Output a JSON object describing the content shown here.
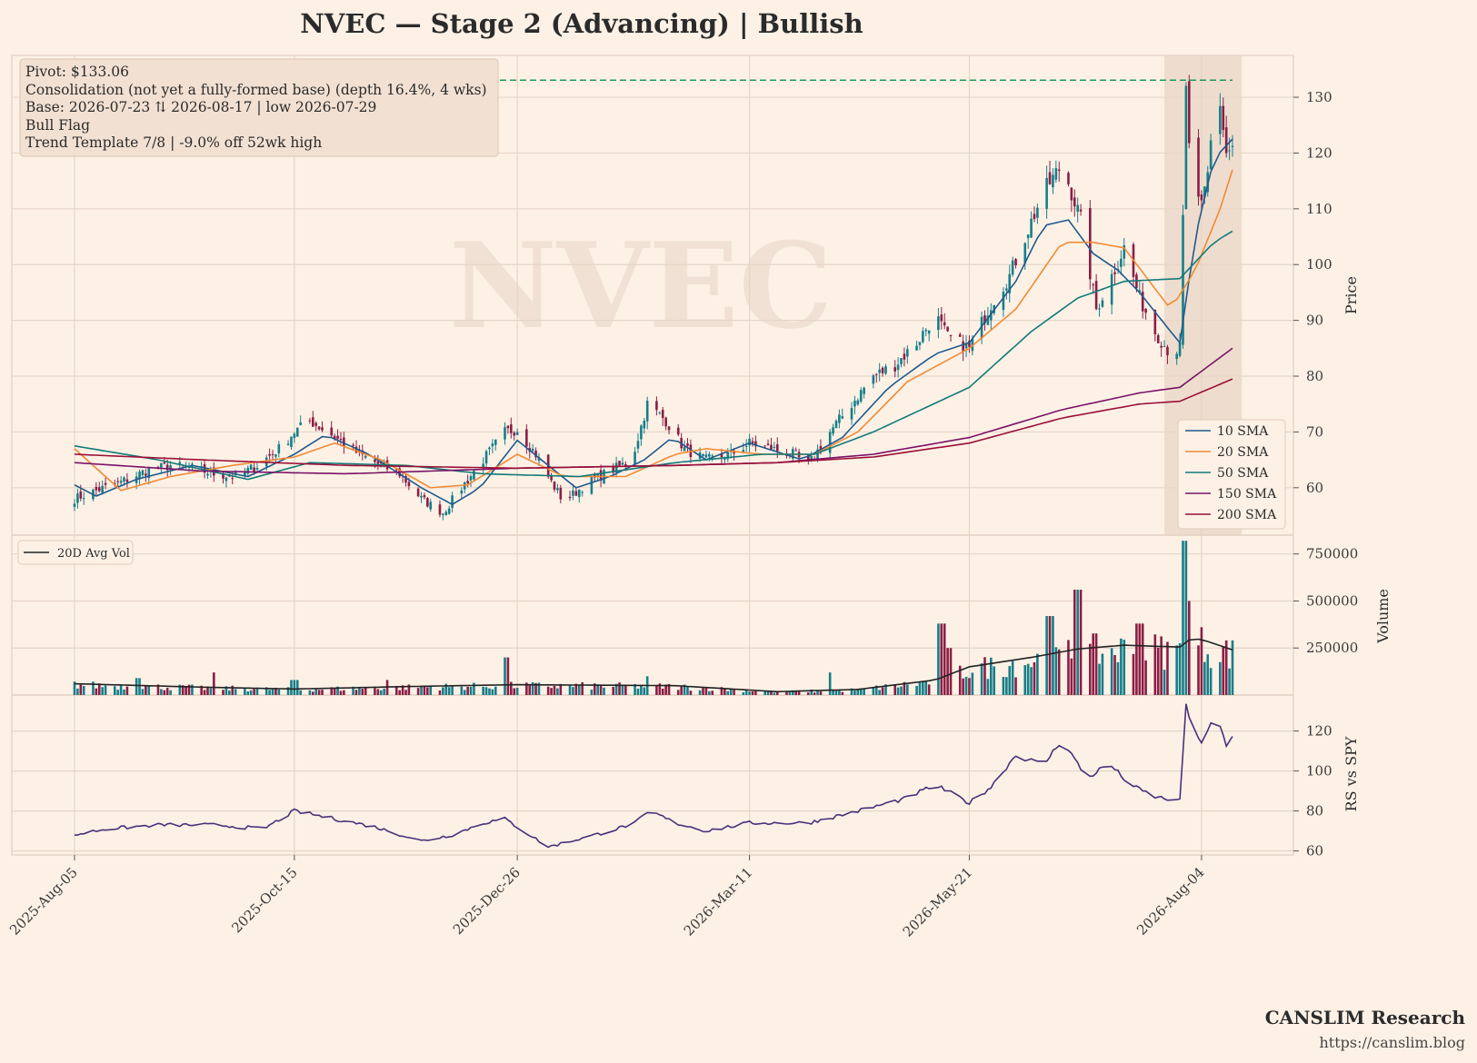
{
  "header": {
    "title": "NVEC  —  Stage 2 (Advancing)  |  Bullish",
    "watermark": "NVEC"
  },
  "annotation": {
    "lines": [
      "Pivot: $133.06",
      "Consolidation (not yet a fully-formed base)  (depth 16.4%, 4 wks)",
      "Base: 2026-07-23 ⇅ 2026-08-17  |  low 2026-07-29",
      "Bull Flag",
      "Trend Template 7/8  |  -9.0% off 52wk high"
    ]
  },
  "branding": {
    "name": "CANSLIM Research",
    "url": "https://canslim.blog"
  },
  "colors": {
    "background": "#fdf1e6",
    "grid": "#e6d5c7",
    "up": "#177e89",
    "down": "#8b1e46",
    "sma10": "#1f5a8c",
    "sma20": "#f08a33",
    "sma50": "#127a78",
    "sma150": "#7a1268",
    "sma200": "#9a1038",
    "pivot": "#1f9a55",
    "rs": "#4a2f7a",
    "avgvol": "#222222",
    "base_shade": "#e8d5c6"
  },
  "chart_data": [
    {
      "type": "candlestick",
      "name": "price",
      "ylabel": "Price",
      "ylim": [
        51.5,
        137.5
      ],
      "yticks": [
        60,
        70,
        80,
        90,
        100,
        110,
        120,
        130
      ],
      "pivot": 133.06,
      "base_start": "2026-07-23",
      "base_end": "2026-08-17",
      "legend_position": "bottom-right",
      "legend": [
        "10 SMA",
        "20 SMA",
        "50 SMA",
        "150 SMA",
        "200 SMA"
      ],
      "x_ticks": [
        "2025-Aug-05",
        "2025-Oct-15",
        "2025-Dec-26",
        "2026-Mar-11",
        "2026-May-21",
        "2026-Aug-04"
      ],
      "x_start": "2025-08-05",
      "x_end": "2026-08-14",
      "close_anchors": [
        [
          "2025-08-05",
          58
        ],
        [
          "2025-08-12",
          59.5
        ],
        [
          "2025-08-20",
          61
        ],
        [
          "2025-08-28",
          63
        ],
        [
          "2025-09-05",
          64
        ],
        [
          "2025-09-12",
          63.5
        ],
        [
          "2025-09-19",
          62.5
        ],
        [
          "2025-09-26",
          62
        ],
        [
          "2025-10-03",
          64
        ],
        [
          "2025-10-10",
          67
        ],
        [
          "2025-10-15",
          70
        ],
        [
          "2025-10-20",
          72
        ],
        [
          "2025-10-27",
          69.5
        ],
        [
          "2025-11-05",
          66
        ],
        [
          "2025-11-12",
          64
        ],
        [
          "2025-11-18",
          62.5
        ],
        [
          "2025-11-25",
          58
        ],
        [
          "2025-12-02",
          55.5
        ],
        [
          "2025-12-08",
          60
        ],
        [
          "2025-12-15",
          65
        ],
        [
          "2025-12-22",
          70
        ],
        [
          "2025-12-26",
          70.5
        ],
        [
          "2026-01-01",
          66
        ],
        [
          "2026-01-06",
          61
        ],
        [
          "2026-01-10",
          57.5
        ],
        [
          "2026-01-18",
          61
        ],
        [
          "2026-01-25",
          63
        ],
        [
          "2026-02-01",
          65
        ],
        [
          "2026-02-06",
          75
        ],
        [
          "2026-02-12",
          72
        ],
        [
          "2026-02-18",
          67
        ],
        [
          "2026-02-25",
          65
        ],
        [
          "2026-03-05",
          66
        ],
        [
          "2026-03-11",
          68
        ],
        [
          "2026-03-18",
          67
        ],
        [
          "2026-03-25",
          66
        ],
        [
          "2026-03-30",
          64
        ],
        [
          "2026-04-06",
          70
        ],
        [
          "2026-04-13",
          75
        ],
        [
          "2026-04-20",
          80
        ],
        [
          "2026-04-27",
          82
        ],
        [
          "2026-05-04",
          86
        ],
        [
          "2026-05-10",
          91
        ],
        [
          "2026-05-14",
          87
        ],
        [
          "2026-05-21",
          85
        ],
        [
          "2026-05-28",
          93
        ],
        [
          "2026-06-03",
          98
        ],
        [
          "2026-06-08",
          105
        ],
        [
          "2026-06-14",
          113
        ],
        [
          "2026-06-20",
          118
        ],
        [
          "2026-06-26",
          108
        ],
        [
          "2026-07-01",
          92
        ],
        [
          "2026-07-06",
          98
        ],
        [
          "2026-07-10",
          103
        ],
        [
          "2026-07-15",
          94
        ],
        [
          "2026-07-20",
          88
        ],
        [
          "2026-07-25",
          84
        ],
        [
          "2026-07-28",
          85
        ],
        [
          "2026-07-30",
          131
        ],
        [
          "2026-08-01",
          113
        ],
        [
          "2026-08-04",
          110
        ],
        [
          "2026-08-06",
          116
        ],
        [
          "2026-08-08",
          128
        ],
        [
          "2026-08-10",
          129
        ],
        [
          "2026-08-12",
          120
        ],
        [
          "2026-08-14",
          121
        ]
      ],
      "sma10_anchors": [
        [
          "2025-08-05",
          60.5
        ],
        [
          "2025-08-12",
          58.5
        ],
        [
          "2025-08-25",
          61.5
        ],
        [
          "2025-09-12",
          64
        ],
        [
          "2025-09-30",
          62
        ],
        [
          "2025-10-15",
          66
        ],
        [
          "2025-10-25",
          69.5
        ],
        [
          "2025-11-08",
          66
        ],
        [
          "2025-11-25",
          60
        ],
        [
          "2025-12-05",
          57
        ],
        [
          "2025-12-14",
          60
        ],
        [
          "2025-12-26",
          68.5
        ],
        [
          "2026-01-05",
          64
        ],
        [
          "2026-01-14",
          60
        ],
        [
          "2026-01-25",
          62
        ],
        [
          "2026-02-05",
          65
        ],
        [
          "2026-02-14",
          69
        ],
        [
          "2026-02-25",
          65
        ],
        [
          "2026-03-11",
          68
        ],
        [
          "2026-03-28",
          65
        ],
        [
          "2026-04-10",
          69
        ],
        [
          "2026-04-25",
          78
        ],
        [
          "2026-05-10",
          84
        ],
        [
          "2026-05-21",
          86
        ],
        [
          "2026-06-05",
          97
        ],
        [
          "2026-06-14",
          107
        ],
        [
          "2026-06-22",
          108
        ],
        [
          "2026-06-30",
          102
        ],
        [
          "2026-07-08",
          99
        ],
        [
          "2026-07-15",
          95
        ],
        [
          "2026-07-25",
          88
        ],
        [
          "2026-07-28",
          86
        ],
        [
          "2026-08-02",
          105
        ],
        [
          "2026-08-08",
          119
        ],
        [
          "2026-08-14",
          122.5
        ]
      ],
      "sma20_anchors": [
        [
          "2025-08-05",
          67
        ],
        [
          "2025-08-20",
          59.5
        ],
        [
          "2025-09-05",
          62
        ],
        [
          "2025-09-25",
          64
        ],
        [
          "2025-10-15",
          65.5
        ],
        [
          "2025-10-28",
          68
        ],
        [
          "2025-11-12",
          65
        ],
        [
          "2025-11-28",
          60
        ],
        [
          "2025-12-10",
          60.5
        ],
        [
          "2025-12-26",
          66
        ],
        [
          "2026-01-10",
          62
        ],
        [
          "2026-01-30",
          62
        ],
        [
          "2026-02-15",
          66
        ],
        [
          "2026-02-25",
          67
        ],
        [
          "2026-03-15",
          66
        ],
        [
          "2026-04-01",
          66
        ],
        [
          "2026-04-15",
          70
        ],
        [
          "2026-05-01",
          79
        ],
        [
          "2026-05-21",
          85
        ],
        [
          "2026-06-05",
          92
        ],
        [
          "2026-06-20",
          104
        ],
        [
          "2026-06-30",
          104
        ],
        [
          "2026-07-10",
          103
        ],
        [
          "2026-07-25",
          92
        ],
        [
          "2026-08-02",
          99
        ],
        [
          "2026-08-10",
          110
        ],
        [
          "2026-08-14",
          117
        ]
      ],
      "sma50_anchors": [
        [
          "2025-08-05",
          67.5
        ],
        [
          "2025-09-01",
          65
        ],
        [
          "2025-09-30",
          61.5
        ],
        [
          "2025-10-20",
          64.5
        ],
        [
          "2025-11-20",
          64
        ],
        [
          "2025-12-15",
          62.5
        ],
        [
          "2026-01-15",
          62
        ],
        [
          "2026-02-15",
          64.5
        ],
        [
          "2026-03-15",
          66
        ],
        [
          "2026-04-01",
          66
        ],
        [
          "2026-04-20",
          70
        ],
        [
          "2026-05-21",
          78
        ],
        [
          "2026-06-10",
          88
        ],
        [
          "2026-06-25",
          94
        ],
        [
          "2026-07-10",
          97
        ],
        [
          "2026-07-28",
          97.5
        ],
        [
          "2026-08-08",
          104
        ],
        [
          "2026-08-14",
          106
        ]
      ],
      "sma150_anchors": [
        [
          "2025-08-05",
          64.5
        ],
        [
          "2025-09-15",
          63
        ],
        [
          "2025-11-01",
          62.5
        ],
        [
          "2025-12-26",
          63.5
        ],
        [
          "2026-02-15",
          64
        ],
        [
          "2026-03-20",
          64.5
        ],
        [
          "2026-04-20",
          66
        ],
        [
          "2026-05-21",
          69
        ],
        [
          "2026-06-20",
          74
        ],
        [
          "2026-07-15",
          77
        ],
        [
          "2026-07-28",
          78
        ],
        [
          "2026-08-14",
          85
        ]
      ],
      "sma200_anchors": [
        [
          "2025-08-05",
          66
        ],
        [
          "2025-09-15",
          65
        ],
        [
          "2025-11-01",
          64
        ],
        [
          "2025-12-26",
          63.5
        ],
        [
          "2026-02-15",
          64
        ],
        [
          "2026-03-20",
          64.5
        ],
        [
          "2026-04-20",
          65.5
        ],
        [
          "2026-05-21",
          68
        ],
        [
          "2026-06-20",
          72.5
        ],
        [
          "2026-07-15",
          75
        ],
        [
          "2026-07-28",
          75.5
        ],
        [
          "2026-08-14",
          79.5
        ]
      ]
    },
    {
      "type": "bar",
      "name": "volume",
      "ylabel": "Volume",
      "ylim": [
        0,
        850000
      ],
      "yticks": [
        250000,
        500000,
        750000
      ],
      "legend": [
        "20D Avg Vol"
      ],
      "legend_position": "top-left",
      "spikes": [
        [
          "2025-08-25",
          90000
        ],
        [
          "2025-09-20",
          120000
        ],
        [
          "2025-10-15",
          80000
        ],
        [
          "2025-11-15",
          80000
        ],
        [
          "2025-12-22",
          200000
        ],
        [
          "2026-02-07",
          100000
        ],
        [
          "2026-04-05",
          120000
        ],
        [
          "2026-05-12",
          380000
        ],
        [
          "2026-05-15",
          250000
        ],
        [
          "2026-06-15",
          620000
        ],
        [
          "2026-06-16",
          420000
        ],
        [
          "2026-06-25",
          560000
        ],
        [
          "2026-07-15",
          380000
        ],
        [
          "2026-07-30",
          820000
        ],
        [
          "2026-08-01",
          500000
        ]
      ],
      "avg_anchors": [
        [
          "2025-08-05",
          60000
        ],
        [
          "2025-09-15",
          42000
        ],
        [
          "2025-10-15",
          32000
        ],
        [
          "2025-11-20",
          45000
        ],
        [
          "2025-12-26",
          55000
        ],
        [
          "2026-02-15",
          50000
        ],
        [
          "2026-03-20",
          18000
        ],
        [
          "2026-04-15",
          30000
        ],
        [
          "2026-05-10",
          80000
        ],
        [
          "2026-05-21",
          150000
        ],
        [
          "2026-06-10",
          200000
        ],
        [
          "2026-06-25",
          245000
        ],
        [
          "2026-07-10",
          265000
        ],
        [
          "2026-07-28",
          255000
        ],
        [
          "2026-08-01",
          305000
        ],
        [
          "2026-08-06",
          285000
        ],
        [
          "2026-08-14",
          240000
        ]
      ]
    },
    {
      "type": "line",
      "name": "rs",
      "ylabel": "RS vs SPY",
      "ylim": [
        58,
        138
      ],
      "yticks": [
        60,
        80,
        100,
        120
      ],
      "anchors": [
        [
          "2025-08-05",
          68
        ],
        [
          "2025-08-15",
          71
        ],
        [
          "2025-09-01",
          73
        ],
        [
          "2025-09-20",
          73
        ],
        [
          "2025-10-05",
          71
        ],
        [
          "2025-10-15",
          80
        ],
        [
          "2025-10-25",
          77
        ],
        [
          "2025-11-10",
          72
        ],
        [
          "2025-11-25",
          65
        ],
        [
          "2025-12-05",
          68
        ],
        [
          "2025-12-15",
          74
        ],
        [
          "2025-12-22",
          76
        ],
        [
          "2025-12-30",
          68
        ],
        [
          "2026-01-05",
          62
        ],
        [
          "2026-01-15",
          66
        ],
        [
          "2026-01-25",
          70
        ],
        [
          "2026-02-02",
          74
        ],
        [
          "2026-02-07",
          80
        ],
        [
          "2026-02-15",
          74
        ],
        [
          "2026-02-25",
          70
        ],
        [
          "2026-03-11",
          74
        ],
        [
          "2026-03-30",
          74
        ],
        [
          "2026-04-15",
          80
        ],
        [
          "2026-04-30",
          86
        ],
        [
          "2026-05-10",
          93
        ],
        [
          "2026-05-21",
          84
        ],
        [
          "2026-05-28",
          92
        ],
        [
          "2026-06-05",
          108
        ],
        [
          "2026-06-14",
          103
        ],
        [
          "2026-06-20",
          116
        ],
        [
          "2026-06-28",
          96
        ],
        [
          "2026-07-05",
          104
        ],
        [
          "2026-07-12",
          93
        ],
        [
          "2026-07-20",
          87
        ],
        [
          "2026-07-28",
          85
        ],
        [
          "2026-07-30",
          134
        ],
        [
          "2026-08-01",
          117
        ],
        [
          "2026-08-04",
          115
        ],
        [
          "2026-08-07",
          123
        ],
        [
          "2026-08-10",
          122
        ],
        [
          "2026-08-12",
          112
        ],
        [
          "2026-08-14",
          117
        ]
      ]
    }
  ]
}
